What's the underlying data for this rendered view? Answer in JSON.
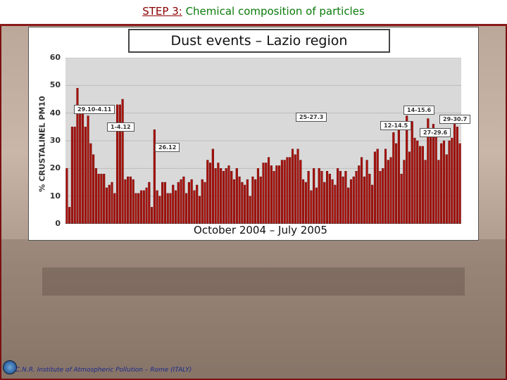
{
  "slide": {
    "step_label": "STEP 3:",
    "title": "Chemical composition of particles"
  },
  "footer": {
    "text": "C.N.R. Institute of Atmospheric Pollution – Rome (ITALY)"
  },
  "colors": {
    "bar_fill": "#a8120c",
    "bar_stroke": "#5a0000",
    "plot_bg": "#d9d9d9",
    "title_green": "#0b7a0b"
  },
  "chart_data": {
    "type": "bar",
    "title": "Dust events – Lazio region",
    "xlabel": "October 2004 – July 2005",
    "ylabel": "% CRUSTALINEL PM10",
    "ylim": [
      0,
      60
    ],
    "yticks": [
      0,
      10,
      20,
      30,
      40,
      50,
      60
    ],
    "values": [
      20,
      6,
      35,
      35,
      49,
      41,
      41,
      35,
      39,
      29,
      25,
      20,
      18,
      18,
      18,
      13,
      14,
      15,
      11,
      43,
      43,
      45,
      16,
      17,
      17,
      16,
      11,
      11,
      12,
      12,
      13,
      15,
      6,
      34,
      12,
      10,
      15,
      15,
      11,
      11,
      14,
      12,
      15,
      16,
      17,
      11,
      15,
      16,
      12,
      14,
      10,
      16,
      15,
      23,
      22,
      27,
      20,
      22,
      20,
      19,
      20,
      21,
      19,
      16,
      20,
      17,
      15,
      14,
      16,
      10,
      17,
      16,
      20,
      17,
      22,
      22,
      24,
      21,
      19,
      21,
      21,
      23,
      23,
      24,
      24,
      27,
      25,
      27,
      23,
      16,
      15,
      19,
      12,
      20,
      13,
      20,
      19,
      15,
      19,
      18,
      16,
      14,
      20,
      19,
      17,
      19,
      13,
      16,
      17,
      19,
      21,
      24,
      17,
      23,
      18,
      14,
      26,
      27,
      19,
      20,
      27,
      23,
      24,
      33,
      29,
      35,
      18,
      23,
      39,
      26,
      37,
      31,
      30,
      28,
      28,
      23,
      38,
      33,
      36,
      32,
      23,
      29,
      30,
      25,
      30,
      31,
      36,
      35,
      29
    ],
    "annotations": [
      "29.10-4.11",
      "1-4.12",
      "26.12",
      "25-27.3",
      "12-14.5",
      "14-15.6",
      "27-29.6",
      "29-30.7"
    ]
  }
}
